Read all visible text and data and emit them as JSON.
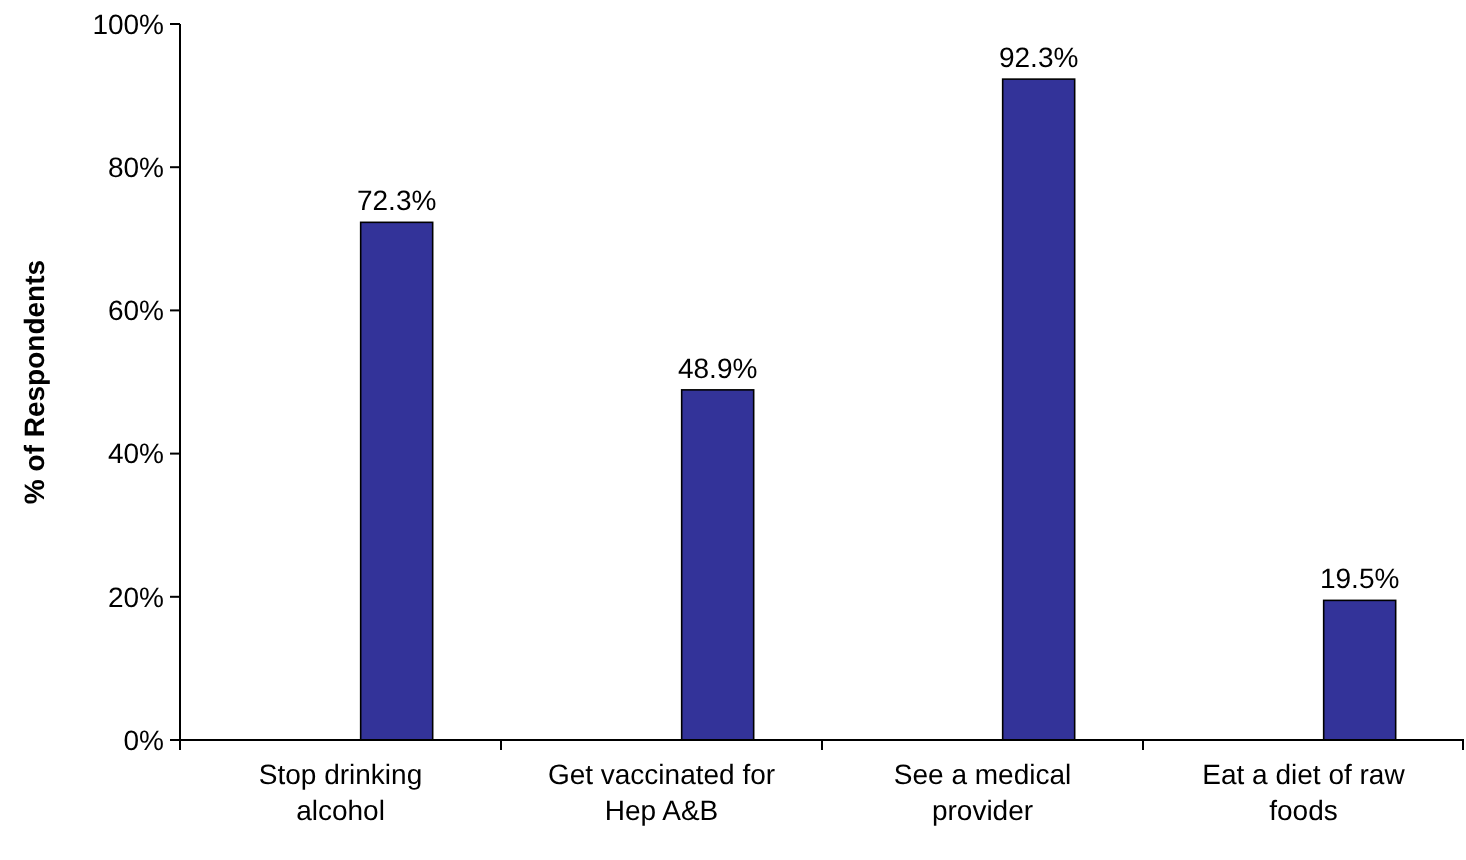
{
  "chart_data": {
    "type": "bar",
    "ylabel": "% of Respondents",
    "categories": [
      "Stop drinking alcohol",
      "Get vaccinated for Hep A&B",
      "See a medical provider",
      "Eat a diet of raw foods"
    ],
    "values": [
      72.3,
      48.9,
      92.3,
      19.5
    ],
    "value_labels": [
      "72.3%",
      "48.9%",
      "92.3%",
      "19.5%"
    ],
    "color": "#333399",
    "ylim": [
      0,
      100
    ],
    "yticks": [
      {
        "value": 0,
        "label": "0%"
      },
      {
        "value": 20,
        "label": "20%"
      },
      {
        "value": 40,
        "label": "40%"
      },
      {
        "value": 60,
        "label": "60%"
      },
      {
        "value": 80,
        "label": "80%"
      },
      {
        "value": 100,
        "label": "100%"
      }
    ],
    "grid": false
  }
}
